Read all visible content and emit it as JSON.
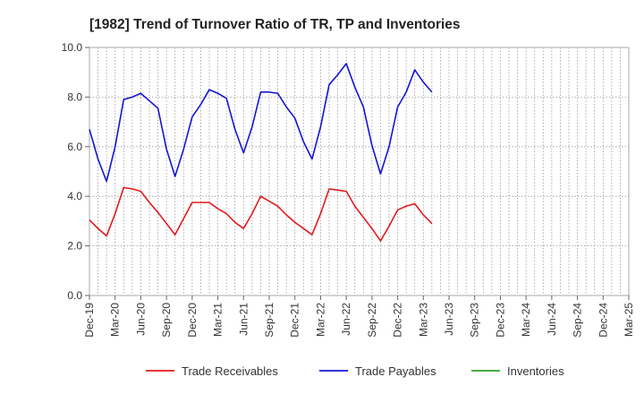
{
  "chart_data": {
    "type": "line",
    "title": "[1982]  Trend of Turnover Ratio of TR, TP and Inventories",
    "xlabel": "",
    "ylabel": "",
    "ylim": [
      0,
      10
    ],
    "y_ticks": [
      "0.0",
      "2.0",
      "4.0",
      "6.0",
      "8.0",
      "10.0"
    ],
    "x_tick_labels": [
      "Dec-19",
      "Mar-20",
      "Jun-20",
      "Sep-20",
      "Dec-20",
      "Mar-21",
      "Jun-21",
      "Sep-21",
      "Dec-21",
      "Mar-22",
      "Jun-22",
      "Sep-22",
      "Dec-22",
      "Mar-23",
      "Jun-23",
      "Sep-23",
      "Dec-23",
      "Mar-24",
      "Jun-24",
      "Sep-24",
      "Dec-24",
      "Mar-25"
    ],
    "grid": "dotted",
    "legend_position": "bottom",
    "series": [
      {
        "name": "Trade Receivables",
        "color": "#e31a1c",
        "values": [
          3.05,
          2.7,
          2.4,
          3.3,
          4.35,
          4.3,
          4.2,
          3.75,
          3.35,
          2.9,
          2.45,
          3.1,
          3.75,
          3.75,
          3.75,
          3.5,
          3.3,
          2.95,
          2.7,
          3.3,
          4.0,
          3.8,
          3.6,
          3.25,
          2.95,
          2.7,
          2.45,
          3.3,
          4.3,
          4.25,
          4.2,
          3.6,
          3.15,
          2.7,
          2.2,
          2.8,
          3.45,
          3.6,
          3.7,
          3.25,
          2.9
        ]
      },
      {
        "name": "Trade Payables",
        "color": "#1515d4",
        "values": [
          6.7,
          5.5,
          4.6,
          6.0,
          7.9,
          8.0,
          8.15,
          7.85,
          7.55,
          5.9,
          4.8,
          5.9,
          7.2,
          7.7,
          8.3,
          8.15,
          7.95,
          6.7,
          5.75,
          6.8,
          8.2,
          8.2,
          8.15,
          7.6,
          7.15,
          6.2,
          5.5,
          6.8,
          8.5,
          8.9,
          9.35,
          8.4,
          7.6,
          6.05,
          4.9,
          6.0,
          7.6,
          8.2,
          9.1,
          8.6,
          8.2
        ]
      },
      {
        "name": "Inventories",
        "color": "#2ca02c",
        "values": []
      }
    ]
  }
}
